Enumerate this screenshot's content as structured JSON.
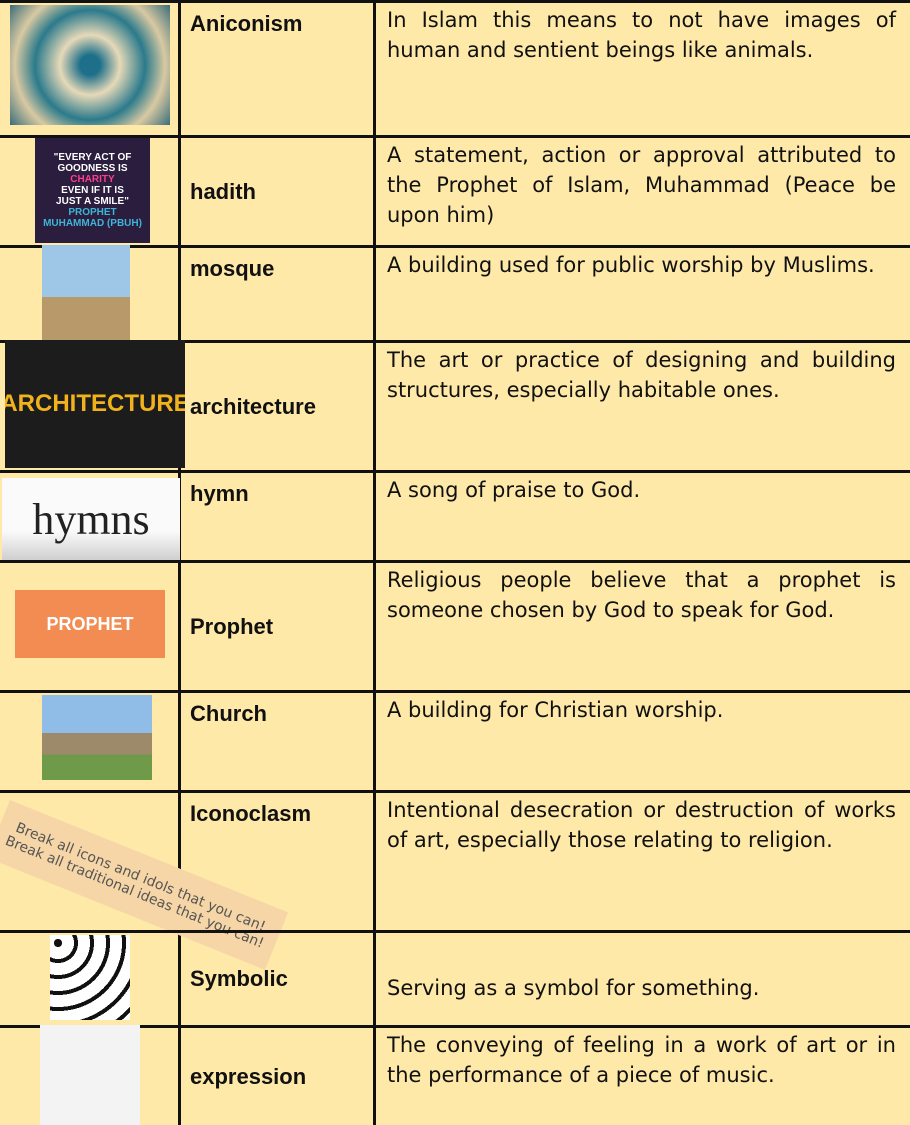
{
  "table": {
    "rows": [
      {
        "term": "Aniconism",
        "definition": "In Islam this means to not have images of human and sentient beings like animals."
      },
      {
        "term": "hadith",
        "definition": "A statement, action or approval attributed to the Prophet of Islam, Muhammad (Peace be upon him)",
        "image_text": [
          "\"EVERY ACT OF",
          "GOODNESS IS",
          "CHARITY",
          "EVEN IF IT IS",
          "JUST A SMILE\"",
          "PROPHET",
          "MUHAMMAD (PBUH)"
        ]
      },
      {
        "term": "mosque",
        "definition": "A building used for public worship by Muslims."
      },
      {
        "term": "architecture",
        "definition": "The art or practice of designing and building structures, especially habitable ones.",
        "image_text": [
          "ARCHITECTURE"
        ]
      },
      {
        "term": "hymn",
        "definition": "A song of praise to God.",
        "image_text": [
          "hymns"
        ]
      },
      {
        "term": "Prophet",
        "definition": "Religious people believe that a prophet is someone chosen by God to speak for God.",
        "image_text": [
          "PROPHET"
        ]
      },
      {
        "term": "Church",
        "definition": "A building for Christian worship."
      },
      {
        "term": "Iconoclasm",
        "definition": "Intentional desecration or destruction of works of art, especially those relating to religion.",
        "image_text": [
          "Break all icons and idols that you can!",
          "Break all traditional ideas that you can!"
        ]
      },
      {
        "term": "Symbolic",
        "definition": "Serving as a symbol for something."
      },
      {
        "term": "expression",
        "definition": "The conveying of feeling in a work of art or in the performance of a piece of music."
      }
    ]
  }
}
